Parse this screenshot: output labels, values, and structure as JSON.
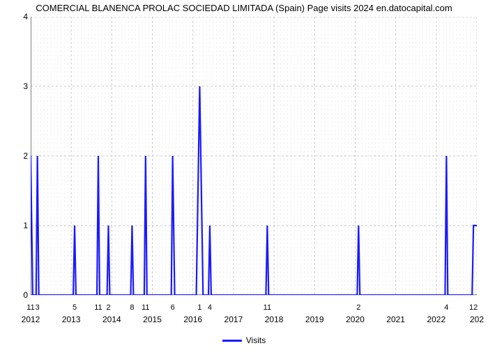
{
  "chart": {
    "type": "line",
    "title": "COMERCIAL BLANENCA PROLAC SOCIEDAD LIMITADA (Spain) Page visits 2024 en.datocapital.com",
    "title_fontsize": 13,
    "title_color": "#000000",
    "background_color": "#ffffff",
    "plot_background": "#ffffff",
    "line_color": "#1a1aff",
    "line_width": 2.2,
    "grid_color_major": "#c8c8c8",
    "grid_color_minor": "#e6e6e6",
    "grid_line_width": 1,
    "grid_dash": "3,3",
    "axis_color": "#000000",
    "axis_width": 1,
    "y_axis": {
      "min": 0,
      "max": 4,
      "tick_step": 1,
      "ticks": [
        0,
        1,
        2,
        3,
        4
      ],
      "label_fontsize": 12
    },
    "x_axis": {
      "min": 0,
      "max": 132,
      "major_step": 12,
      "major_labels": [
        "2012",
        "2013",
        "2014",
        "2015",
        "2016",
        "2017",
        "2018",
        "2019",
        "2020",
        "2021",
        "2022",
        "202"
      ],
      "first_row": [
        {
          "pos": 0,
          "label": "11"
        },
        {
          "pos": 2,
          "label": "3"
        },
        {
          "pos": 13,
          "label": "5"
        },
        {
          "pos": 20,
          "label": "11"
        },
        {
          "pos": 23,
          "label": "2"
        },
        {
          "pos": 30,
          "label": "8"
        },
        {
          "pos": 34,
          "label": "11"
        },
        {
          "pos": 42,
          "label": "6"
        },
        {
          "pos": 50,
          "label": "1"
        },
        {
          "pos": 53,
          "label": "4"
        },
        {
          "pos": 70,
          "label": "11"
        },
        {
          "pos": 97,
          "label": "2"
        },
        {
          "pos": 123,
          "label": "4"
        },
        {
          "pos": 131,
          "label": "12"
        }
      ],
      "label_fontsize": 12
    },
    "data_points": [
      [
        0,
        2
      ],
      [
        0.6,
        0
      ],
      [
        1.6,
        0
      ],
      [
        2,
        2
      ],
      [
        2.4,
        0
      ],
      [
        12.6,
        0
      ],
      [
        13,
        1
      ],
      [
        13.4,
        0
      ],
      [
        19.6,
        0
      ],
      [
        20,
        2
      ],
      [
        20.4,
        0
      ],
      [
        22.6,
        0
      ],
      [
        23,
        1
      ],
      [
        23.4,
        0
      ],
      [
        29.6,
        0
      ],
      [
        30,
        1
      ],
      [
        30.4,
        0
      ],
      [
        33.6,
        0
      ],
      [
        34,
        2
      ],
      [
        34.4,
        0
      ],
      [
        41.6,
        0
      ],
      [
        42,
        2
      ],
      [
        42.6,
        0
      ],
      [
        49,
        0
      ],
      [
        50,
        3
      ],
      [
        51,
        0
      ],
      [
        52.6,
        0
      ],
      [
        53,
        1
      ],
      [
        53.4,
        0
      ],
      [
        69.6,
        0
      ],
      [
        70,
        1
      ],
      [
        70.4,
        0
      ],
      [
        96.6,
        0
      ],
      [
        97,
        1
      ],
      [
        97.4,
        0
      ],
      [
        122.6,
        0
      ],
      [
        123,
        2
      ],
      [
        123.4,
        0
      ],
      [
        130.6,
        0
      ],
      [
        131,
        1
      ],
      [
        132,
        1
      ]
    ],
    "legend": {
      "label": "Visits",
      "swatch_color": "#1a1aff",
      "fontsize": 12
    }
  }
}
